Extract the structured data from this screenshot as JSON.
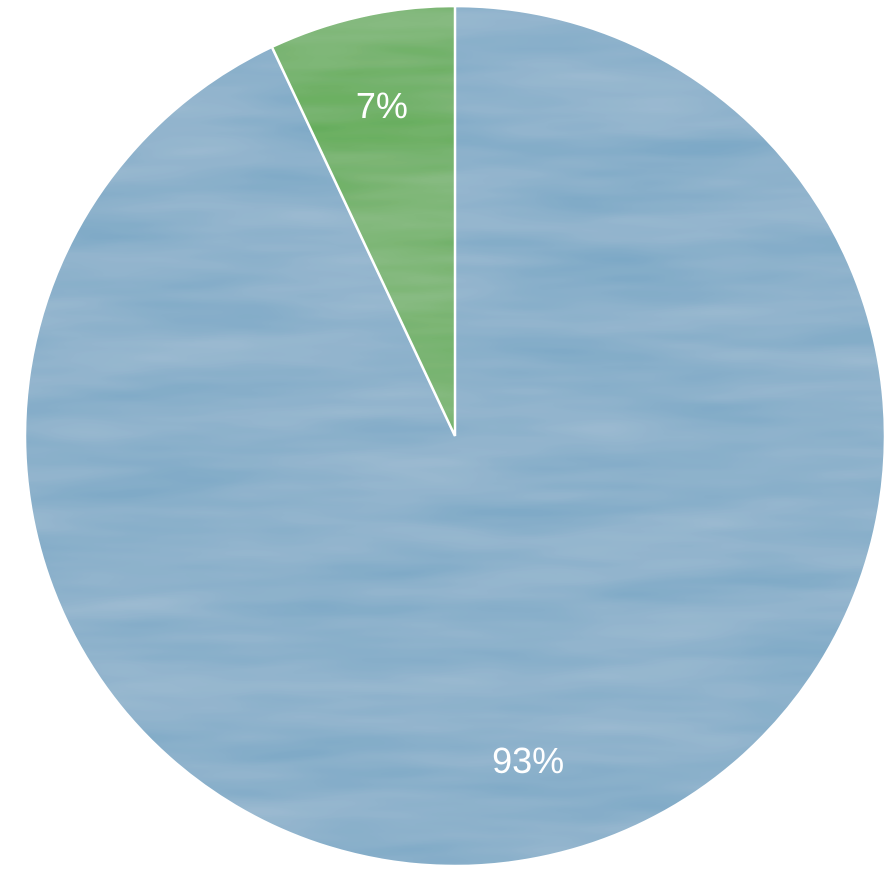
{
  "chart_data": {
    "type": "pie",
    "values": [
      93,
      7
    ],
    "value_labels": [
      "93%",
      "7%"
    ],
    "colors": [
      "#76a5c4",
      "#59a94b"
    ]
  }
}
